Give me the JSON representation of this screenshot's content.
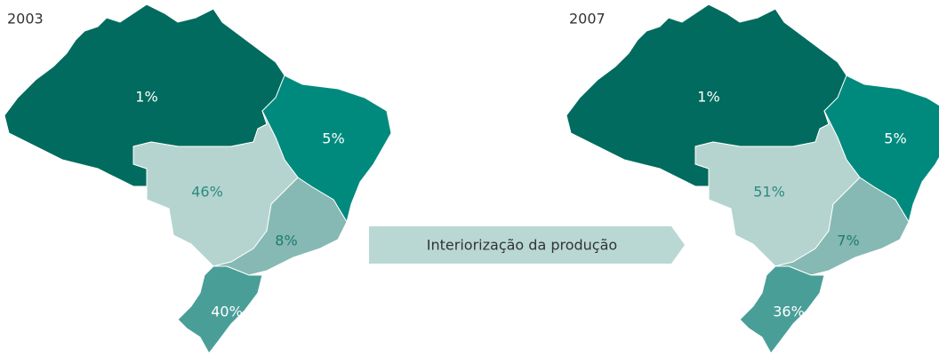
{
  "maps": [
    {
      "year": "2003",
      "regions": [
        "1%",
        "5%",
        "46%",
        "8%",
        "40%"
      ]
    },
    {
      "year": "2007",
      "regions": [
        "1%",
        "5%",
        "51%",
        "7%",
        "36%"
      ]
    }
  ],
  "arrow": {
    "label": "Interiorização da produção"
  }
}
